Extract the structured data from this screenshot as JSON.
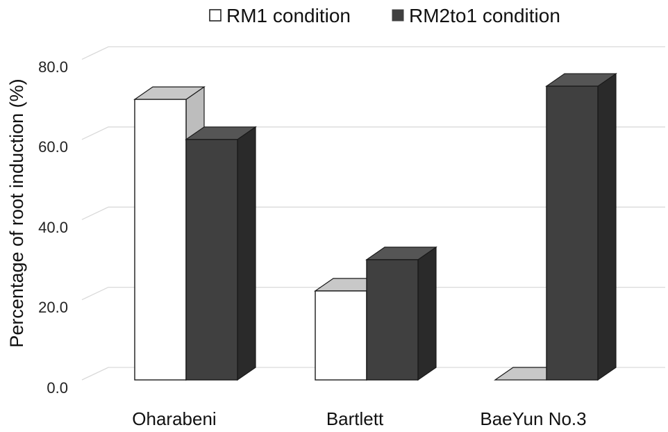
{
  "chart_data": {
    "type": "bar",
    "style": "3d-clustered-column",
    "categories": [
      "Oharabeni",
      "Bartlett",
      "BaeYun No.3"
    ],
    "series": [
      {
        "name": "RM1 condition",
        "color": "#ffffff",
        "values": [
          70.0,
          22.2,
          0.0
        ]
      },
      {
        "name": "RM2to1 condition",
        "color": "#404040",
        "values": [
          60.0,
          30.0,
          73.3
        ]
      }
    ],
    "ylabel": "Percentage of root induction (%)",
    "xlabel": "",
    "ylim": [
      0,
      80
    ],
    "yticks": [
      "0.0",
      "20.0",
      "40.0",
      "60.0",
      "80.0"
    ],
    "grid": true,
    "legend": "top"
  }
}
